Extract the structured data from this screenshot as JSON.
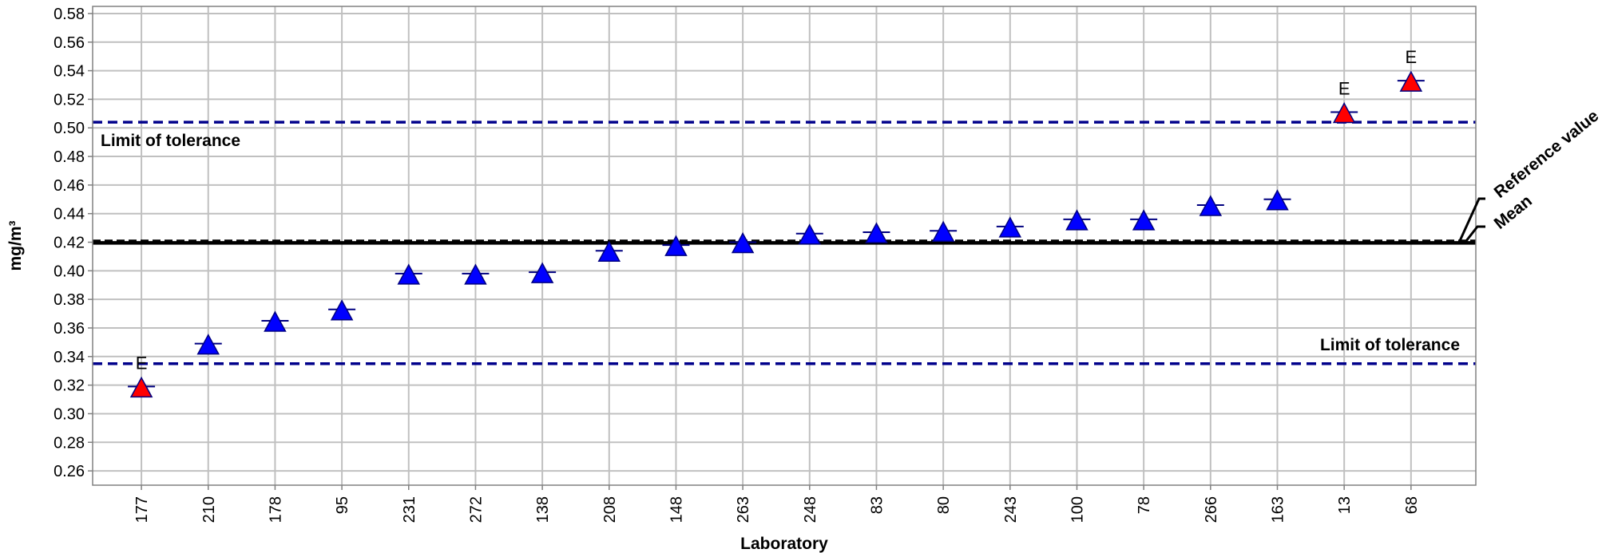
{
  "chart_data": {
    "type": "scatter",
    "xlabel": "Laboratory",
    "ylabel": "mg/m³",
    "ylim": [
      0.25,
      0.585
    ],
    "yticks": [
      0.26,
      0.28,
      0.3,
      0.32,
      0.34,
      0.36,
      0.38,
      0.4,
      0.42,
      0.44,
      0.46,
      0.48,
      0.5,
      0.52,
      0.54,
      0.56,
      0.58
    ],
    "grid": true,
    "categories": [
      "177",
      "210",
      "178",
      "95",
      "231",
      "272",
      "138",
      "208",
      "148",
      "263",
      "248",
      "83",
      "80",
      "243",
      "100",
      "78",
      "266",
      "163",
      "13",
      "68"
    ],
    "values": [
      0.319,
      0.349,
      0.365,
      0.373,
      0.398,
      0.398,
      0.399,
      0.414,
      0.418,
      0.42,
      0.426,
      0.427,
      0.428,
      0.431,
      0.436,
      0.436,
      0.446,
      0.45,
      0.511,
      0.533
    ],
    "flags": [
      "E",
      "",
      "",
      "",
      "",
      "",
      "",
      "",
      "",
      "",
      "",
      "",
      "",
      "",
      "",
      "",
      "",
      "",
      "E",
      "E"
    ],
    "colors": {
      "normal": "#0000ff",
      "flagged": "#ff0000",
      "outline": "#000080",
      "limit_line": "#00008b",
      "grid": "#c0c0c0"
    },
    "lines": {
      "upper_limit": 0.504,
      "lower_limit": 0.335,
      "reference_value": 0.421,
      "mean": 0.4195
    },
    "annotations": {
      "upper_limit_label": "Limit of tolerance",
      "lower_limit_label": "Limit of tolerance",
      "reference_label": "Reference value",
      "mean_label": "Mean"
    }
  }
}
